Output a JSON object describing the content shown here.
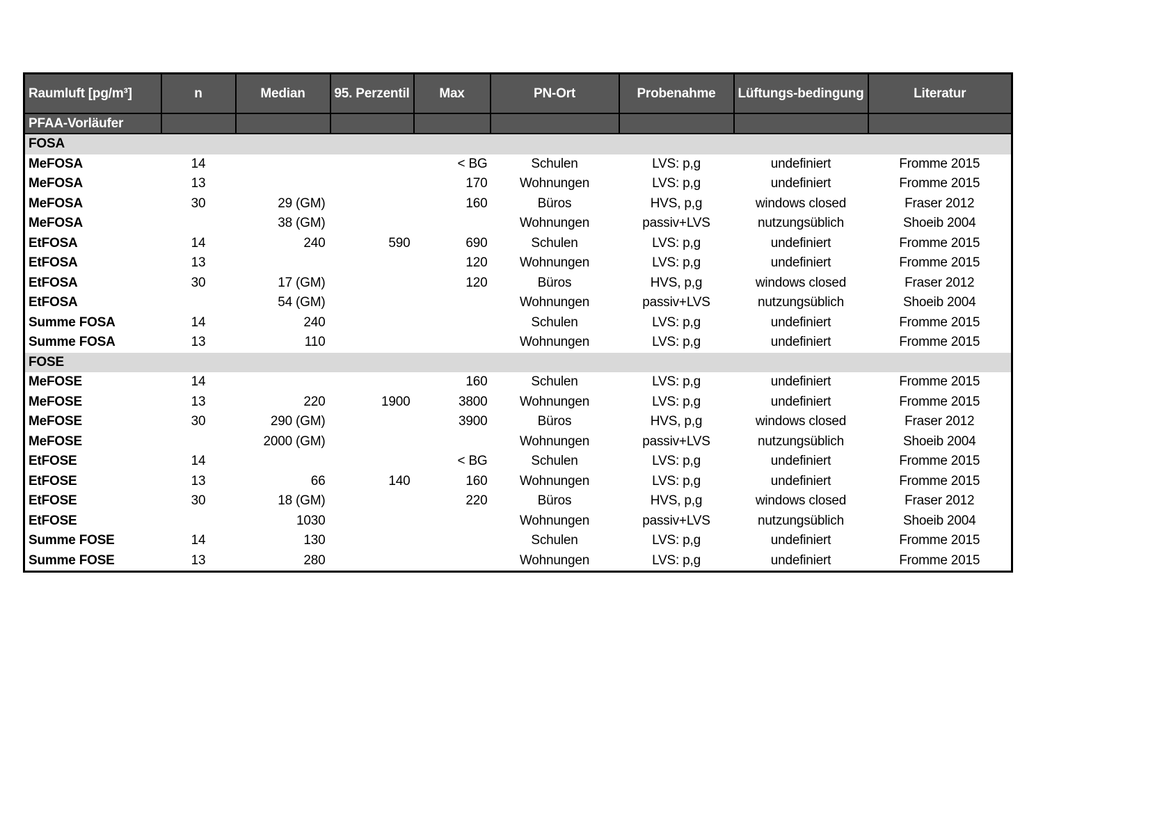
{
  "colors": {
    "header_bg": "#575757",
    "band_bg": "#d9d9d9",
    "border": "#000000",
    "header_text": "#ffffff",
    "body_text": "#000000"
  },
  "table": {
    "header": [
      "Raumluft [pg/m³]",
      "n",
      "Median",
      "95. Perzentil",
      "Max",
      "PN-Ort",
      "Probenahme",
      "Lüftungs-bedingung",
      "Literatur"
    ],
    "group_header": "PFAA-Vorläufer",
    "sections": [
      {
        "name": "FOSA",
        "rows": [
          [
            "MeFOSA",
            "14",
            "",
            "",
            "< BG",
            "Schulen",
            "LVS: p,g",
            "undefiniert",
            "Fromme 2015"
          ],
          [
            "MeFOSA",
            "13",
            "",
            "",
            "170",
            "Wohnungen",
            "LVS: p,g",
            "undefiniert",
            "Fromme 2015"
          ],
          [
            "MeFOSA",
            "30",
            "29 (GM)",
            "",
            "160",
            "Büros",
            "HVS, p,g",
            "windows closed",
            "Fraser 2012"
          ],
          [
            "MeFOSA",
            "",
            "38 (GM)",
            "",
            "",
            "Wohnungen",
            "passiv+LVS",
            "nutzungsüblich",
            "Shoeib 2004"
          ],
          [
            "EtFOSA",
            "14",
            "240",
            "590",
            "690",
            "Schulen",
            "LVS: p,g",
            "undefiniert",
            "Fromme 2015"
          ],
          [
            "EtFOSA",
            "13",
            "",
            "",
            "120",
            "Wohnungen",
            "LVS: p,g",
            "undefiniert",
            "Fromme 2015"
          ],
          [
            "EtFOSA",
            "30",
            "17 (GM)",
            "",
            "120",
            "Büros",
            "HVS, p,g",
            "windows closed",
            "Fraser 2012"
          ],
          [
            "EtFOSA",
            "",
            "54 (GM)",
            "",
            "",
            "Wohnungen",
            "passiv+LVS",
            "nutzungsüblich",
            "Shoeib 2004"
          ],
          [
            "Summe FOSA",
            "14",
            "240",
            "",
            "",
            "Schulen",
            "LVS: p,g",
            "undefiniert",
            "Fromme 2015"
          ],
          [
            "Summe FOSA",
            "13",
            "110",
            "",
            "",
            "Wohnungen",
            "LVS: p,g",
            "undefiniert",
            "Fromme 2015"
          ]
        ]
      },
      {
        "name": "FOSE",
        "rows": [
          [
            "MeFOSE",
            "14",
            "",
            "",
            "160",
            "Schulen",
            "LVS: p,g",
            "undefiniert",
            "Fromme 2015"
          ],
          [
            "MeFOSE",
            "13",
            "220",
            "1900",
            "3800",
            "Wohnungen",
            "LVS: p,g",
            "undefiniert",
            "Fromme 2015"
          ],
          [
            "MeFOSE",
            "30",
            "290 (GM)",
            "",
            "3900",
            "Büros",
            "HVS, p,g",
            "windows closed",
            "Fraser 2012"
          ],
          [
            "MeFOSE",
            "",
            "2000 (GM)",
            "",
            "",
            "Wohnungen",
            "passiv+LVS",
            "nutzungsüblich",
            "Shoeib 2004"
          ],
          [
            "EtFOSE",
            "14",
            "",
            "",
            "< BG",
            "Schulen",
            "LVS: p,g",
            "undefiniert",
            "Fromme 2015"
          ],
          [
            "EtFOSE",
            "13",
            "66",
            "140",
            "160",
            "Wohnungen",
            "LVS: p,g",
            "undefiniert",
            "Fromme 2015"
          ],
          [
            "EtFOSE",
            "30",
            "18 (GM)",
            "",
            "220",
            "Büros",
            "HVS, p,g",
            "windows closed",
            "Fraser 2012"
          ],
          [
            "EtFOSE",
            "",
            "1030",
            "",
            "",
            "Wohnungen",
            "passiv+LVS",
            "nutzungsüblich",
            "Shoeib 2004"
          ],
          [
            "Summe FOSE",
            "14",
            "130",
            "",
            "",
            "Schulen",
            "LVS: p,g",
            "undefiniert",
            "Fromme 2015"
          ],
          [
            "Summe FOSE",
            "13",
            "280",
            "",
            "",
            "Wohnungen",
            "LVS: p,g",
            "undefiniert",
            "Fromme 2015"
          ]
        ]
      }
    ]
  }
}
